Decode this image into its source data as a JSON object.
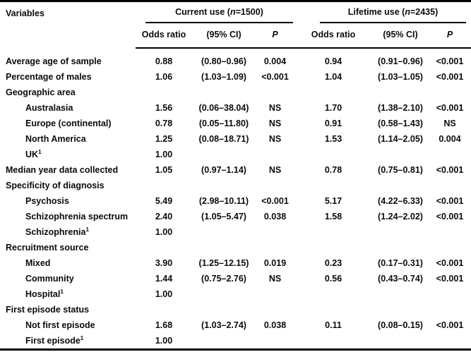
{
  "table": {
    "header": {
      "variables_label": "Variables",
      "groups": [
        {
          "pre": "Current use (",
          "n_italic": "n",
          "post": "=1500)"
        },
        {
          "pre": "Lifetime use (",
          "n_italic": "n",
          "post": "=2435)"
        }
      ],
      "sub": {
        "or1": "Odds ratio",
        "ci1": "(95% CI)",
        "p1": "P",
        "or2": "Odds ratio",
        "ci2": "(95% CI)",
        "p2": "P"
      }
    },
    "rows": [
      {
        "label": "Average age of sample",
        "or1": "0.88",
        "ci1": "(0.80–0.96)",
        "p1": "0.004",
        "or2": "0.94",
        "ci2": "(0.91–0.96)",
        "p2": "<0.001"
      },
      {
        "label": "Percentage of males",
        "or1": "1.06",
        "ci1": "(1.03–1.09)",
        "p1": "<0.001",
        "or2": "1.04",
        "ci2": "(1.03–1.05)",
        "p2": "<0.001"
      },
      {
        "label": "Geographic area"
      },
      {
        "label": "Australasia",
        "or1": "1.56",
        "ci1": "(0.06–38.04)",
        "p1": "NS",
        "or2": "1.70",
        "ci2": "(1.38–2.10)",
        "p2": "<0.001"
      },
      {
        "label": "Europe (continental)",
        "or1": "0.78",
        "ci1": "(0.05–11.80)",
        "p1": "NS",
        "or2": "0.91",
        "ci2": "(0.58–1.43)",
        "p2": "NS"
      },
      {
        "label": "North America",
        "or1": "1.25",
        "ci1": "(0.08–18.71)",
        "p1": "NS",
        "or2": "1.53",
        "ci2": "(1.14–2.05)",
        "p2": "0.004"
      },
      {
        "label": "UK",
        "sup": "1",
        "or1": "1.00"
      },
      {
        "label": "Median year data collected",
        "or1": "1.05",
        "ci1": "(0.97–1.14)",
        "p1": "NS",
        "or2": "0.78",
        "ci2": "(0.75–0.81)",
        "p2": "<0.001"
      },
      {
        "label": "Specificity of diagnosis"
      },
      {
        "label": "Psychosis",
        "or1": "5.49",
        "ci1": "(2.98–10.11)",
        "p1": "<0.001",
        "or2": "5.17",
        "ci2": "(4.22–6.33)",
        "p2": "<0.001"
      },
      {
        "label": "Schizophrenia spectrum",
        "or1": "2.40",
        "ci1": "(1.05–5.47)",
        "p1": "0.038",
        "or2": "1.58",
        "ci2": "(1.24–2.02)",
        "p2": "<0.001"
      },
      {
        "label": "Schizophrenia",
        "sup": "1",
        "or1": "1.00"
      },
      {
        "label": "Recruitment source"
      },
      {
        "label": "Mixed",
        "or1": "3.90",
        "ci1": "(1.25–12.15)",
        "p1": "0.019",
        "or2": "0.23",
        "ci2": "(0.17–0.31)",
        "p2": "<0.001"
      },
      {
        "label": "Community",
        "or1": "1.44",
        "ci1": "(0.75–2.76)",
        "p1": "NS",
        "or2": "0.56",
        "ci2": "(0.43–0.74)",
        "p2": "<0.001"
      },
      {
        "label": "Hospital",
        "sup": "1",
        "or1": "1.00"
      },
      {
        "label": "First episode status"
      },
      {
        "label": "Not first episode",
        "or1": "1.68",
        "ci1": "(1.03–2.74)",
        "p1": "0.038",
        "or2": "0.11",
        "ci2": "(0.08–0.15)",
        "p2": "<0.001"
      },
      {
        "label": "First episode",
        "sup": "1",
        "or1": "1.00"
      }
    ]
  }
}
